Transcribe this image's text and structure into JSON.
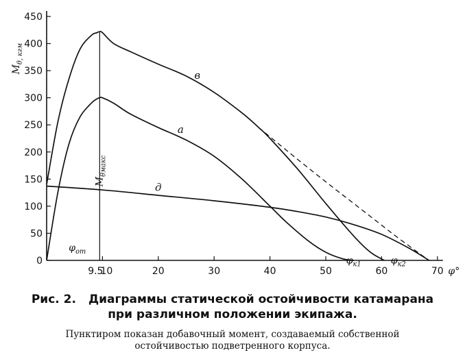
{
  "chart_data": {
    "type": "line",
    "title": "",
    "ylabel": "M_θ, кгм",
    "xlabel": "φ°",
    "xlim": [
      0,
      70
    ],
    "ylim": [
      0,
      450
    ],
    "y_ticks": [
      0,
      50,
      100,
      150,
      200,
      250,
      300,
      350,
      400,
      450
    ],
    "x_ticks": [
      {
        "value": 9.5,
        "label": "9.5"
      },
      {
        "value": 10,
        "label": "10"
      },
      {
        "value": 20,
        "label": "20"
      },
      {
        "value": 30,
        "label": "30"
      },
      {
        "value": 40,
        "label": "40"
      },
      {
        "value": 50,
        "label": "50"
      },
      {
        "value": 60,
        "label": "60"
      },
      {
        "value": 70,
        "label": "70"
      }
    ],
    "grid": false,
    "series": [
      {
        "name": "в",
        "label_at": [
          27,
          335
        ],
        "x": [
          0,
          2,
          4,
          6,
          8,
          9,
          9.5,
          10,
          12,
          15,
          20,
          25,
          30,
          35,
          38,
          40,
          45,
          50,
          55,
          58,
          60.5
        ],
        "values": [
          140,
          255,
          335,
          390,
          415,
          420,
          422,
          420,
          400,
          385,
          362,
          340,
          310,
          272,
          245,
          225,
          168,
          105,
          45,
          15,
          0
        ],
        "dashed": false
      },
      {
        "name": "а",
        "label_at": [
          24,
          235
        ],
        "x": [
          0,
          2,
          4,
          6,
          8,
          9,
          9.5,
          10,
          12,
          15,
          20,
          25,
          30,
          35,
          40,
          43,
          47,
          50,
          53,
          55
        ],
        "values": [
          0,
          125,
          215,
          265,
          290,
          298,
          300,
          300,
          290,
          270,
          245,
          222,
          192,
          150,
          100,
          70,
          35,
          15,
          3,
          0
        ],
        "dashed": false
      },
      {
        "name": "д",
        "label_at": [
          20,
          128
        ],
        "x": [
          0,
          10,
          20,
          30,
          40,
          45,
          50,
          55,
          60,
          65,
          68.5
        ],
        "values": [
          137,
          130,
          120,
          110,
          98,
          90,
          80,
          66,
          48,
          22,
          0
        ],
        "dashed": false
      },
      {
        "name": "",
        "x": [
          38,
          40,
          45,
          50,
          55,
          60,
          62.5,
          65,
          67,
          68.5
        ],
        "values": [
          245,
          228,
          186,
          145,
          105,
          65,
          45,
          26,
          11,
          0
        ],
        "dashed": true
      }
    ],
    "annotations": [
      {
        "text": "M_θмакс",
        "x": 9.5,
        "y": 165,
        "rotate": -90
      },
      {
        "text": "φ_от",
        "x": 5.5,
        "y": 18
      },
      {
        "text": "φ_к1",
        "x": 55,
        "y": -6
      },
      {
        "text": "φ_к2",
        "x": 63,
        "y": -6
      }
    ],
    "vertical_markers": [
      {
        "x": 9.5,
        "from": 0,
        "to": 422
      }
    ]
  },
  "caption": {
    "label": "Рис. 2.",
    "title_line1": "Диаграммы статической остойчивости катамарана",
    "title_line2": "при различном положении экипажа."
  },
  "note": {
    "line1": "Пунктиром показан добавочный момент, создаваемый собственной",
    "line2": "остойчивостью подветренного корпуса."
  }
}
